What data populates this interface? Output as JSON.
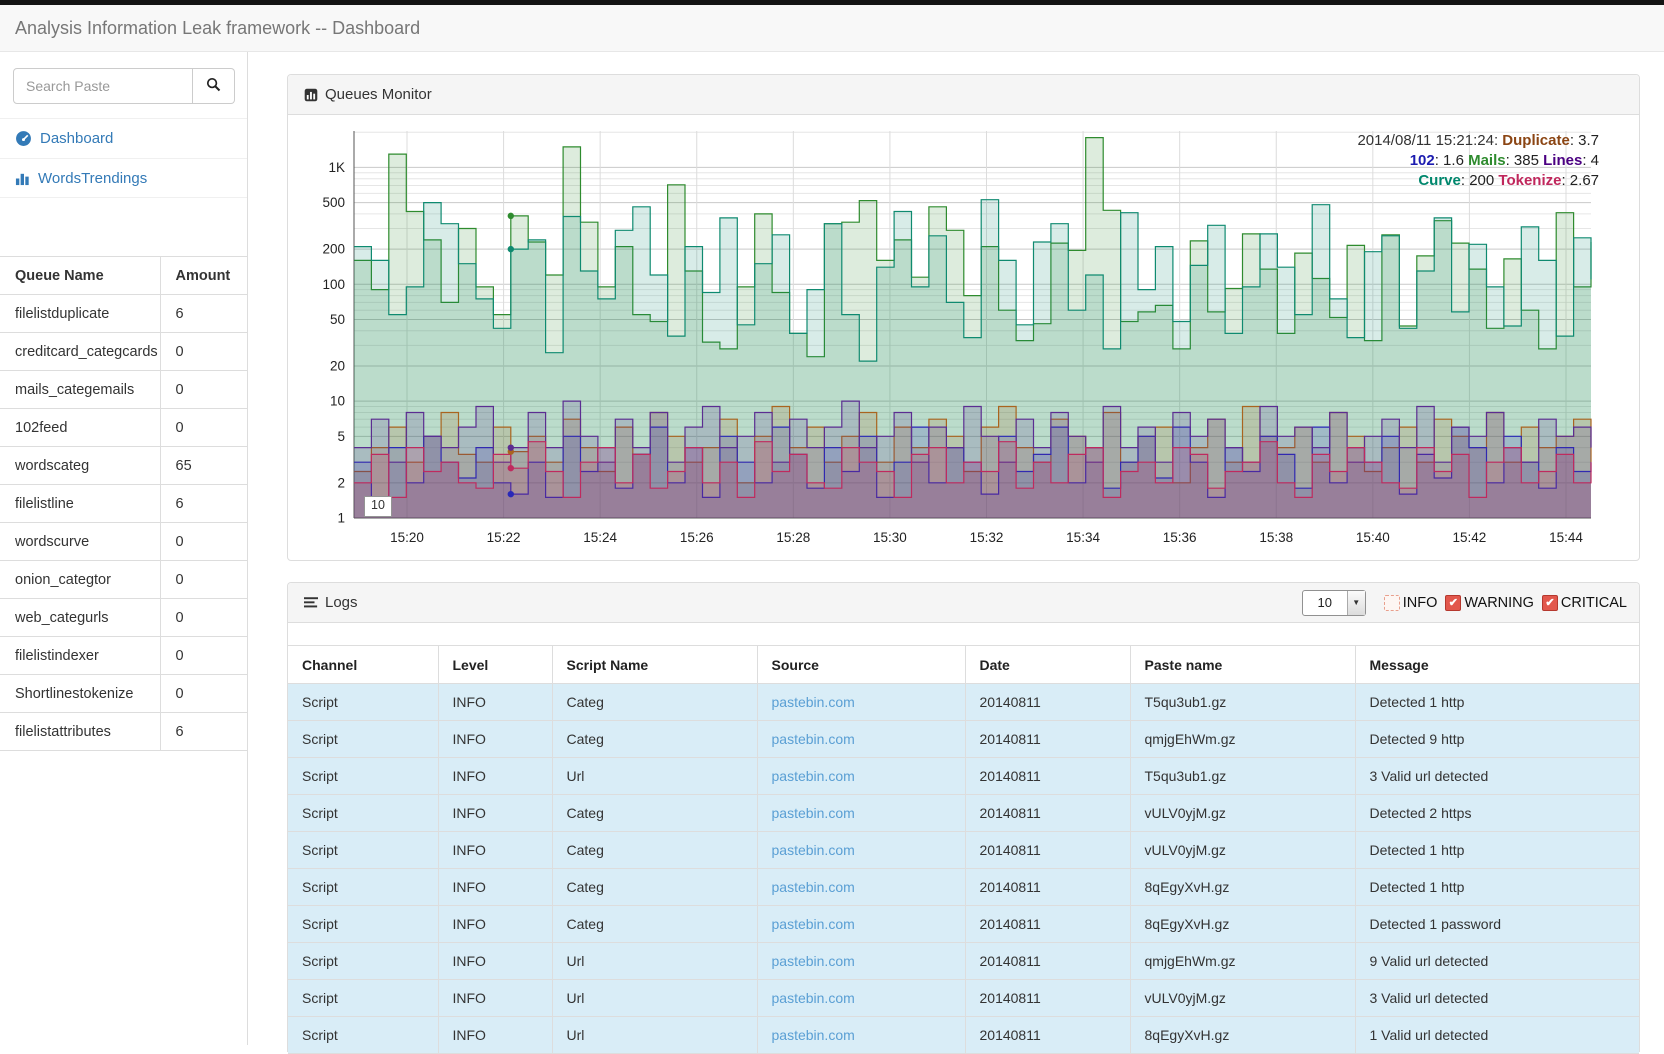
{
  "header": {
    "title": "Analysis Information Leak framework -- Dashboard"
  },
  "sidebar": {
    "search": {
      "placeholder": "Search Paste"
    },
    "nav": [
      {
        "label": "Dashboard"
      },
      {
        "label": "WordsTrendings"
      }
    ],
    "queue_table": {
      "headers": [
        "Queue Name",
        "Amount"
      ],
      "rows": [
        [
          "filelistduplicate",
          "6"
        ],
        [
          "creditcard_categcards",
          "0"
        ],
        [
          "mails_categemails",
          "0"
        ],
        [
          "102feed",
          "0"
        ],
        [
          "wordscateg",
          "65"
        ],
        [
          "filelistline",
          "6"
        ],
        [
          "wordscurve",
          "0"
        ],
        [
          "onion_categtor",
          "0"
        ],
        [
          "web_categurls",
          "0"
        ],
        [
          "filelistindexer",
          "0"
        ],
        [
          "Shortlinestokenize",
          "0"
        ],
        [
          "filelistattributes",
          "6"
        ]
      ]
    }
  },
  "queues_panel": {
    "title": "Queues Monitor"
  },
  "chart_data": {
    "type": "line",
    "title": "Queues Monitor",
    "y_scale": "log",
    "grid": true,
    "legend_position": "top-right",
    "ylim": [
      1,
      2050
    ],
    "x_ticks": [
      "15:20",
      "15:22",
      "15:24",
      "15:26",
      "15:28",
      "15:30",
      "15:32",
      "15:34",
      "15:36",
      "15:38",
      "15:40",
      "15:42",
      "15:44"
    ],
    "y_ticks": [
      {
        "v": 1000,
        "label": "1K"
      },
      {
        "v": 500,
        "label": "500"
      },
      {
        "v": 200,
        "label": "200"
      },
      {
        "v": 100,
        "label": "100"
      },
      {
        "v": 50,
        "label": "50"
      },
      {
        "v": 20,
        "label": "20"
      },
      {
        "v": 10,
        "label": "10"
      },
      {
        "v": 5,
        "label": "5"
      },
      {
        "v": 2,
        "label": "2"
      },
      {
        "v": 1,
        "label": "1"
      }
    ],
    "minor_y_gridlines": [
      3,
      4,
      6,
      7,
      8,
      9,
      30,
      40,
      60,
      70,
      80,
      90,
      300,
      400,
      600,
      700,
      800,
      900,
      2000
    ],
    "annotation": "10",
    "hover": {
      "timestamp": "2014/08/11 15:21:24",
      "index": 9,
      "values": {
        "Duplicate": 3.7,
        "102": 1.6,
        "Mails": 385,
        "Lines": 4,
        "Curve": 200,
        "Tokenize": 2.67
      }
    },
    "legend_lines": [
      [
        {
          "t": "2014/08/11 15:21:24: ",
          "c": "#333333",
          "b": false
        },
        {
          "t": "Duplicate",
          "c": "#8b4513",
          "b": true
        },
        {
          "t": ": 3.7",
          "c": "#222222",
          "b": false
        }
      ],
      [
        {
          "t": "102",
          "c": "#1c1cb0",
          "b": true
        },
        {
          "t": ": 1.6 ",
          "c": "#222222",
          "b": false
        },
        {
          "t": "Mails",
          "c": "#2e8b2e",
          "b": true
        },
        {
          "t": ": 385 ",
          "c": "#222222",
          "b": false
        },
        {
          "t": "Lines",
          "c": "#4b0082",
          "b": true
        },
        {
          "t": ": 4",
          "c": "#222222",
          "b": false
        }
      ],
      [
        {
          "t": "Curve",
          "c": "#00876d",
          "b": true
        },
        {
          "t": ": 200 ",
          "c": "#222222",
          "b": false
        },
        {
          "t": "Tokenize",
          "c": "#c0275c",
          "b": true
        },
        {
          "t": ": 2.67",
          "c": "#222222",
          "b": false
        }
      ]
    ],
    "series": [
      {
        "name": "Mails",
        "color": "#2e8b2e",
        "fill_opacity": 0.16,
        "values": [
          160,
          90,
          1300,
          420,
          240,
          70,
          300,
          95,
          55,
          385,
          230,
          120,
          1500,
          340,
          95,
          210,
          55,
          48,
          710,
          130,
          32,
          28,
          95,
          400,
          85,
          38,
          24,
          330,
          340,
          520,
          160,
          240,
          115,
          460,
          290,
          80,
          210,
          60,
          33,
          46,
          225,
          195,
          1800,
          430,
          48,
          58,
          66,
          28,
          235,
          58,
          92,
          270,
          135,
          38,
          185,
          112,
          52,
          215,
          33,
          265,
          44,
          175,
          350,
          225,
          135,
          42,
          165,
          60,
          28,
          410,
          95,
          230
        ]
      },
      {
        "name": "Curve",
        "color": "#0f8a70",
        "fill_opacity": 0.16,
        "values": [
          210,
          160,
          55,
          95,
          500,
          330,
          150,
          75,
          42,
          200,
          240,
          26,
          380,
          130,
          75,
          290,
          460,
          120,
          36,
          210,
          85,
          370,
          45,
          150,
          265,
          38,
          90,
          330,
          55,
          22,
          140,
          420,
          95,
          260,
          70,
          35,
          530,
          160,
          45,
          230,
          330,
          60,
          120,
          28,
          410,
          90,
          210,
          48,
          145,
          320,
          38,
          95,
          270,
          140,
          55,
          480,
          75,
          35,
          190,
          260,
          42,
          130,
          370,
          58,
          220,
          95,
          44,
          310,
          160,
          36,
          250,
          110
        ]
      },
      {
        "name": "Duplicate",
        "color": "#a9641f",
        "fill_opacity": 0.18,
        "values": [
          2.5,
          4,
          6,
          3,
          5,
          8,
          3.5,
          3,
          6,
          3.7,
          5,
          3,
          7,
          4,
          2.5,
          6,
          3.5,
          8,
          5,
          3,
          4,
          7,
          2,
          5,
          9,
          4,
          6,
          3,
          5,
          8,
          3,
          6,
          4,
          7,
          5,
          2.5,
          6,
          9,
          4,
          3,
          7,
          5,
          4,
          8,
          3,
          5,
          6,
          2,
          4,
          7,
          3,
          9,
          5,
          4,
          6,
          3,
          8,
          5,
          2.5,
          4,
          6,
          3,
          7,
          5,
          4,
          8,
          3,
          6,
          4,
          5,
          7,
          3
        ]
      },
      {
        "name": "102",
        "color": "#2929b8",
        "fill_opacity": 0.18,
        "values": [
          3,
          1.5,
          4,
          2,
          5,
          3,
          2.2,
          4,
          2,
          1.6,
          3,
          1.5,
          5,
          2.5,
          4,
          1.8,
          3.5,
          6,
          2,
          4,
          1.5,
          5,
          3,
          2,
          6,
          3.5,
          1.8,
          4,
          2.5,
          5,
          1.5,
          3,
          6,
          2,
          4,
          3,
          1.6,
          5,
          2.5,
          3.5,
          6,
          2,
          4,
          1.8,
          3,
          5,
          2.2,
          6,
          3,
          1.5,
          4,
          2.5,
          5,
          3.5,
          1.8,
          6,
          2,
          4,
          3,
          5,
          1.6,
          3.5,
          2.2,
          6,
          4,
          2,
          5,
          3,
          1.8,
          4,
          2.5,
          3
        ]
      },
      {
        "name": "Lines",
        "color": "#5b2d91",
        "fill_opacity": 0.18,
        "values": [
          4,
          7,
          3,
          8,
          5,
          4,
          6,
          9,
          3,
          4,
          8,
          4,
          10,
          5,
          3,
          7,
          4,
          8,
          3,
          6,
          9,
          4,
          5,
          8,
          3,
          7,
          4,
          6,
          10,
          4,
          5,
          8,
          3,
          6,
          4,
          9,
          5,
          3,
          7,
          4,
          8,
          5,
          3,
          9,
          4,
          6,
          3,
          8,
          5,
          7,
          4,
          3,
          9,
          5,
          6,
          4,
          8,
          3,
          5,
          7,
          4,
          9,
          3,
          6,
          5,
          8,
          4,
          3,
          7,
          5,
          6,
          4
        ]
      },
      {
        "name": "Tokenize",
        "color": "#bf2a5e",
        "fill_opacity": 0.18,
        "values": [
          2,
          3.5,
          1.5,
          4,
          2.5,
          3,
          2,
          1.8,
          3.5,
          2.67,
          4.5,
          2.5,
          1.5,
          3,
          4,
          2,
          3.5,
          1.8,
          2.5,
          4,
          2,
          3,
          1.5,
          4.5,
          2.5,
          3.5,
          2,
          1.8,
          4,
          3,
          2.5,
          1.5,
          3.5,
          4,
          2,
          3,
          2.5,
          4.5,
          1.8,
          3,
          2,
          3.5,
          4,
          1.5,
          2.5,
          3,
          2,
          4,
          3.5,
          1.8,
          2.5,
          3,
          4.5,
          2,
          1.5,
          3.5,
          2.5,
          4,
          3,
          2,
          1.8,
          4,
          2.5,
          3.5,
          1.5,
          3,
          4,
          2,
          2.5,
          3.5,
          2,
          3
        ]
      }
    ]
  },
  "logs": {
    "title": "Logs",
    "page_size": "10",
    "filters": [
      {
        "label": "INFO",
        "checked": false
      },
      {
        "label": "WARNING",
        "checked": true
      },
      {
        "label": "CRITICAL",
        "checked": true
      }
    ],
    "table": {
      "headers": [
        "Channel",
        "Level",
        "Script Name",
        "Source",
        "Date",
        "Paste name",
        "Message"
      ],
      "rows": [
        {
          "channel": "Script",
          "level": "INFO",
          "script_name": "Categ",
          "source": "pastebin.com",
          "date": "20140811",
          "paste_name": "T5qu3ub1.gz",
          "message": "Detected 1 http"
        },
        {
          "channel": "Script",
          "level": "INFO",
          "script_name": "Categ",
          "source": "pastebin.com",
          "date": "20140811",
          "paste_name": "qmjgEhWm.gz",
          "message": "Detected 9 http"
        },
        {
          "channel": "Script",
          "level": "INFO",
          "script_name": "Url",
          "source": "pastebin.com",
          "date": "20140811",
          "paste_name": "T5qu3ub1.gz",
          "message": "3 Valid url detected"
        },
        {
          "channel": "Script",
          "level": "INFO",
          "script_name": "Categ",
          "source": "pastebin.com",
          "date": "20140811",
          "paste_name": "vULV0yjM.gz",
          "message": "Detected 2 https"
        },
        {
          "channel": "Script",
          "level": "INFO",
          "script_name": "Categ",
          "source": "pastebin.com",
          "date": "20140811",
          "paste_name": "vULV0yjM.gz",
          "message": "Detected 1 http"
        },
        {
          "channel": "Script",
          "level": "INFO",
          "script_name": "Categ",
          "source": "pastebin.com",
          "date": "20140811",
          "paste_name": "8qEgyXvH.gz",
          "message": "Detected 1 http"
        },
        {
          "channel": "Script",
          "level": "INFO",
          "script_name": "Categ",
          "source": "pastebin.com",
          "date": "20140811",
          "paste_name": "8qEgyXvH.gz",
          "message": "Detected 1 password"
        },
        {
          "channel": "Script",
          "level": "INFO",
          "script_name": "Url",
          "source": "pastebin.com",
          "date": "20140811",
          "paste_name": "qmjgEhWm.gz",
          "message": "9 Valid url detected"
        },
        {
          "channel": "Script",
          "level": "INFO",
          "script_name": "Url",
          "source": "pastebin.com",
          "date": "20140811",
          "paste_name": "vULV0yjM.gz",
          "message": "3 Valid url detected"
        },
        {
          "channel": "Script",
          "level": "INFO",
          "script_name": "Url",
          "source": "pastebin.com",
          "date": "20140811",
          "paste_name": "8qEgyXvH.gz",
          "message": "1 Valid url detected"
        }
      ]
    }
  }
}
